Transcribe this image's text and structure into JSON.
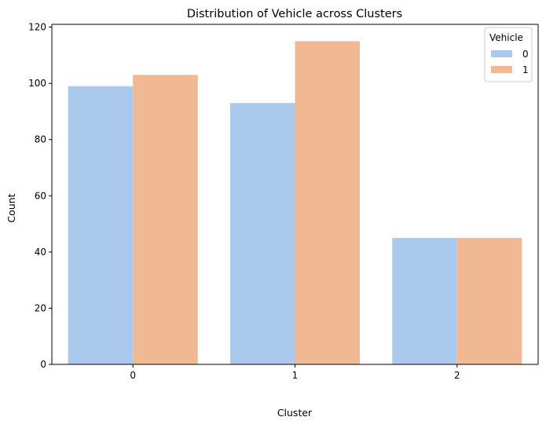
{
  "chart_data": {
    "type": "bar",
    "title": "Distribution of Vehicle across Clusters",
    "xlabel": "Cluster",
    "ylabel": "Count",
    "categories": [
      "0",
      "1",
      "2"
    ],
    "series": [
      {
        "name": "0",
        "values": [
          99,
          93,
          45
        ],
        "color": "#abc9ed"
      },
      {
        "name": "1",
        "values": [
          103,
          115,
          45
        ],
        "color": "#f0b893"
      }
    ],
    "ylim": [
      0,
      121
    ],
    "yticks": [
      0,
      20,
      40,
      60,
      80,
      100,
      120
    ],
    "grid": false,
    "legend": {
      "title": "Vehicle",
      "placement": "top-right"
    }
  }
}
